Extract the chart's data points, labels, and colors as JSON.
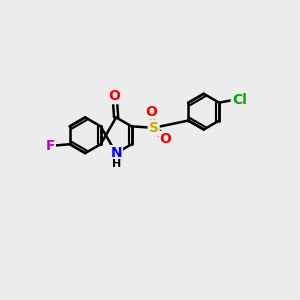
{
  "bg_color": "#ececec",
  "bond_color": "#000000",
  "bond_width": 1.8,
  "atom_colors": {
    "N": "#0000ff",
    "O": "#ff0000",
    "F": "#cc00cc",
    "Cl": "#00aa00",
    "S": "#ccaa00",
    "C": "#000000",
    "H": "#000000"
  },
  "font_size": 10,
  "fig_size": [
    3.0,
    3.0
  ],
  "dpi": 100
}
